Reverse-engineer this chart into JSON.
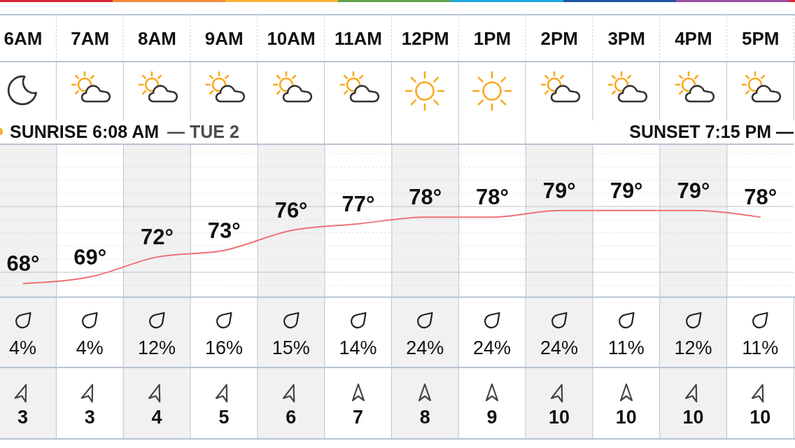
{
  "chart_data": [
    {
      "type": "line",
      "categories": [
        "6AM",
        "7AM",
        "8AM",
        "9AM",
        "10AM",
        "11AM",
        "12PM",
        "1PM",
        "2PM",
        "3PM",
        "4PM",
        "5PM"
      ],
      "values": [
        68,
        69,
        72,
        73,
        76,
        77,
        78,
        78,
        79,
        79,
        79,
        78
      ],
      "value_labels": [
        "68°",
        "69°",
        "72°",
        "73°",
        "76°",
        "77°",
        "78°",
        "78°",
        "79°",
        "79°",
        "79°",
        "78°"
      ],
      "color": "#ef7175",
      "ylim": [
        66,
        89
      ],
      "tick_labels": "x",
      "grid": true,
      "annotations": [
        "SUNRISE 6:08 AM",
        "— TUE 2",
        "SUNSET 7:15 PM —"
      ]
    },
    {
      "type": "other",
      "values": [
        4,
        4,
        12,
        16,
        15,
        14,
        24,
        24,
        24,
        11,
        12,
        11
      ],
      "value_labels": [
        "4%",
        "4%",
        "12%",
        "16%",
        "15%",
        "14%",
        "24%",
        "24%",
        "24%",
        "11%",
        "12%",
        "11%"
      ]
    },
    {
      "type": "other",
      "values": [
        3,
        3,
        4,
        5,
        6,
        7,
        8,
        9,
        10,
        10,
        10,
        10
      ],
      "data_labels": true
    }
  ]
}
